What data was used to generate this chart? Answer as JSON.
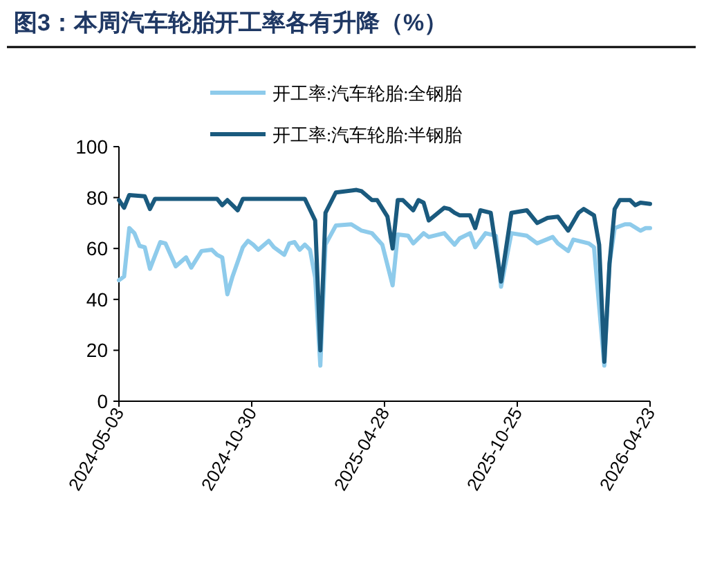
{
  "chart_data": {
    "type": "line",
    "title": "图3：本周汽车轮胎开工率各有升降（%）",
    "series": [
      {
        "name": "开工率:汽车轮胎:全钢胎",
        "color": "#8ecbeb",
        "x": [
          "2024-05-03",
          "2024-05-10",
          "2024-05-17",
          "2024-05-24",
          "2024-05-31",
          "2024-06-07",
          "2024-06-14",
          "2024-06-28",
          "2024-07-05",
          "2024-07-19",
          "2024-08-02",
          "2024-08-09",
          "2024-08-23",
          "2024-09-06",
          "2024-09-13",
          "2024-09-20",
          "2024-09-27",
          "2024-10-04",
          "2024-10-18",
          "2024-10-25",
          "2024-11-01",
          "2024-11-08",
          "2024-11-22",
          "2024-11-29",
          "2024-12-13",
          "2024-12-20",
          "2024-12-27",
          "2025-01-03",
          "2025-01-10",
          "2025-01-17",
          "2025-01-24",
          "2025-01-31",
          "2025-02-07",
          "2025-02-21",
          "2025-03-14",
          "2025-03-28",
          "2025-04-11",
          "2025-04-25",
          "2025-05-09",
          "2025-05-16",
          "2025-05-30",
          "2025-06-06",
          "2025-06-20",
          "2025-06-27",
          "2025-07-18",
          "2025-08-01",
          "2025-08-08",
          "2025-08-22",
          "2025-08-29",
          "2025-09-12",
          "2025-09-26",
          "2025-10-03",
          "2025-10-17",
          "2025-11-07",
          "2025-11-21",
          "2025-12-12",
          "2025-12-19",
          "2026-01-02",
          "2026-01-09",
          "2026-01-30",
          "2026-02-06",
          "2026-02-20",
          "2026-02-27",
          "2026-03-06",
          "2026-03-20",
          "2026-03-27",
          "2026-04-10",
          "2026-04-17",
          "2026-04-23"
        ],
        "values": [
          47.5,
          49,
          68,
          66,
          61,
          60.5,
          52,
          62.5,
          62,
          53,
          56.5,
          52.5,
          59,
          59.5,
          57.5,
          56.5,
          42,
          49,
          60.5,
          63,
          61.5,
          59.5,
          63,
          60.5,
          57.5,
          62,
          62.5,
          59.5,
          61.5,
          59.5,
          48.5,
          14,
          61.5,
          69,
          69.5,
          67,
          66,
          61.5,
          45.5,
          65.5,
          65,
          62,
          66,
          64.5,
          66,
          61.5,
          64,
          66,
          60.5,
          66,
          65,
          45,
          66,
          65,
          62,
          64.5,
          62,
          59,
          63.5,
          62,
          60.5,
          14,
          54,
          68,
          69.5,
          69.5,
          67,
          68,
          68
        ]
      },
      {
        "name": "开工率:汽车轮胎:半钢胎",
        "color": "#1a5a7e",
        "x": [
          "2024-05-03",
          "2024-05-10",
          "2024-05-17",
          "2024-06-07",
          "2024-06-14",
          "2024-06-21",
          "2024-09-13",
          "2024-09-20",
          "2024-09-27",
          "2024-10-11",
          "2024-10-18",
          "2025-01-10",
          "2025-01-24",
          "2025-01-31",
          "2025-02-07",
          "2025-02-21",
          "2025-03-21",
          "2025-03-28",
          "2025-04-11",
          "2025-04-18",
          "2025-05-02",
          "2025-05-09",
          "2025-05-16",
          "2025-05-23",
          "2025-06-06",
          "2025-06-13",
          "2025-06-20",
          "2025-06-27",
          "2025-07-18",
          "2025-07-25",
          "2025-08-01",
          "2025-08-08",
          "2025-08-22",
          "2025-08-29",
          "2025-09-05",
          "2025-09-19",
          "2025-10-03",
          "2025-10-17",
          "2025-11-07",
          "2025-11-21",
          "2025-12-05",
          "2025-12-19",
          "2026-01-02",
          "2026-01-16",
          "2026-01-23",
          "2026-02-06",
          "2026-02-13",
          "2026-02-20",
          "2026-02-27",
          "2026-03-06",
          "2026-03-13",
          "2026-03-27",
          "2026-04-03",
          "2026-04-10",
          "2026-04-23"
        ],
        "values": [
          79,
          76,
          81,
          80.5,
          75.5,
          79.5,
          79.5,
          77,
          79,
          75,
          79.5,
          79.5,
          71,
          20,
          74,
          82,
          83,
          82.5,
          79,
          79,
          72.5,
          60,
          79,
          79,
          75,
          79,
          78,
          71,
          76,
          75.5,
          74,
          73,
          73,
          68,
          75,
          74,
          47,
          74,
          75,
          70,
          72,
          72.5,
          67,
          74,
          75.5,
          73,
          61.5,
          15.5,
          54,
          75.5,
          79,
          79,
          77,
          78,
          77.5
        ]
      }
    ],
    "xlim": [
      "2024-05-03",
      "2026-04-23"
    ],
    "xticks": [
      "2024-05-03",
      "2024-10-30",
      "2025-04-28",
      "2025-10-25",
      "2026-04-23"
    ],
    "ylim": [
      0,
      100
    ],
    "yticks": [
      0,
      20,
      40,
      60,
      80,
      100
    ],
    "grid": false,
    "legend": "top",
    "marker": "none",
    "line_style": "solid"
  }
}
